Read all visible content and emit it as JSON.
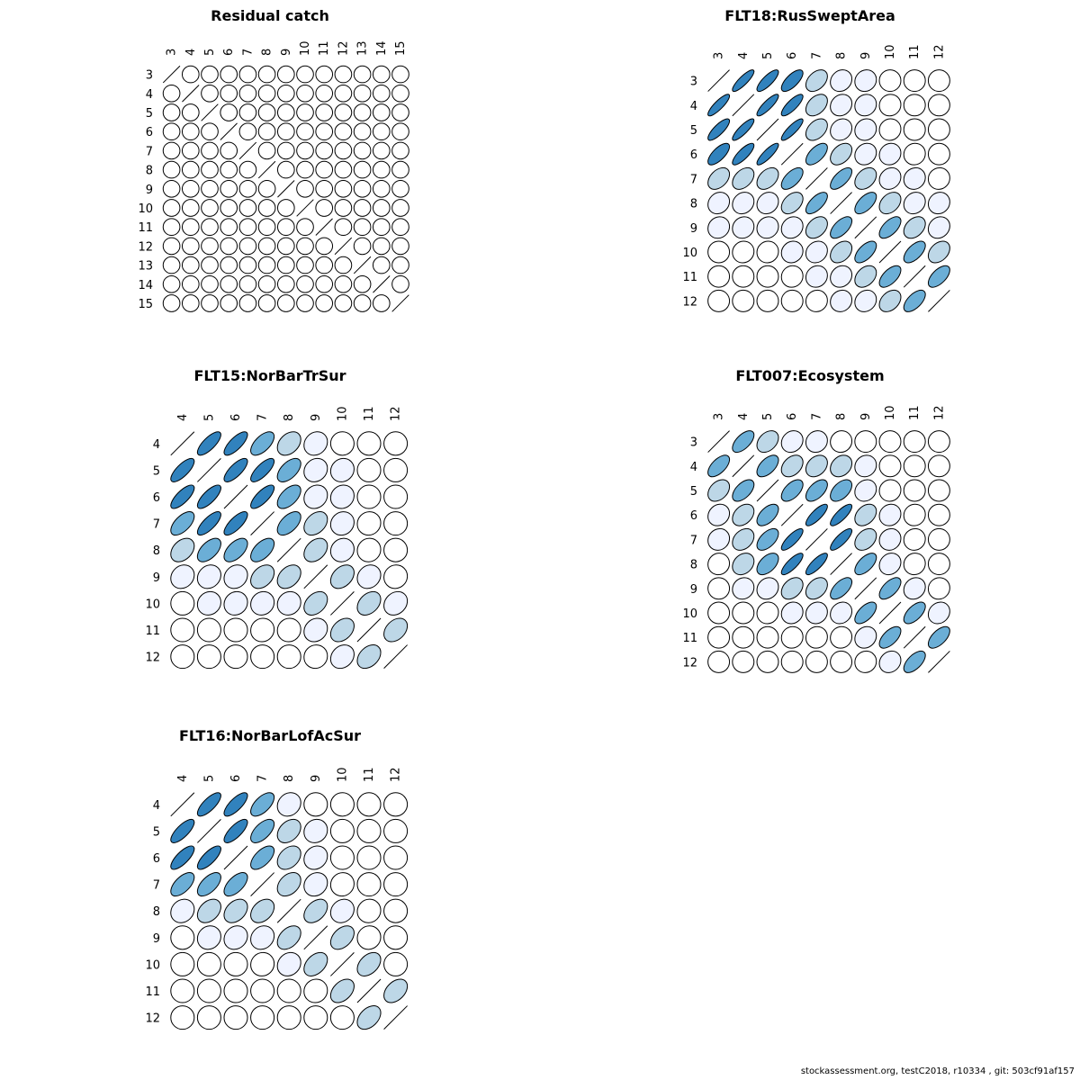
{
  "footer": "stockassessment.org, testC2018, r10334 , git: 503cf91af157",
  "colors": {
    "none": "#ffffff",
    "low": "#eff3ff",
    "mid": "#bdd7e7",
    "high": "#6baed6",
    "max": "#3182bd",
    "outline": "#000000"
  },
  "chart_data": [
    {
      "type": "heatmap",
      "title": "Residual catch",
      "labels": [
        "3",
        "4",
        "5",
        "6",
        "7",
        "8",
        "9",
        "10",
        "11",
        "12",
        "13",
        "14",
        "15"
      ],
      "matrix": [
        [
          1,
          0,
          0,
          0,
          0,
          0,
          0,
          0,
          0,
          0,
          0,
          0,
          0
        ],
        [
          0,
          1,
          0,
          0,
          0,
          0,
          0,
          0,
          0,
          0,
          0,
          0,
          0
        ],
        [
          0,
          0,
          1,
          0,
          0,
          0,
          0,
          0,
          0,
          0,
          0,
          0,
          0
        ],
        [
          0,
          0,
          0,
          1,
          0,
          0,
          0,
          0,
          0,
          0,
          0,
          0,
          0
        ],
        [
          0,
          0,
          0,
          0,
          1,
          0,
          0,
          0,
          0,
          0,
          0,
          0,
          0
        ],
        [
          0,
          0,
          0,
          0,
          0,
          1,
          0,
          0,
          0,
          0,
          0,
          0,
          0
        ],
        [
          0,
          0,
          0,
          0,
          0,
          0,
          1,
          0,
          0,
          0,
          0,
          0,
          0
        ],
        [
          0,
          0,
          0,
          0,
          0,
          0,
          0,
          1,
          0,
          0,
          0,
          0,
          0
        ],
        [
          0,
          0,
          0,
          0,
          0,
          0,
          0,
          0,
          1,
          0,
          0,
          0,
          0
        ],
        [
          0,
          0,
          0,
          0,
          0,
          0,
          0,
          0,
          0,
          1,
          0,
          0,
          0
        ],
        [
          0,
          0,
          0,
          0,
          0,
          0,
          0,
          0,
          0,
          0,
          1,
          0,
          0
        ],
        [
          0,
          0,
          0,
          0,
          0,
          0,
          0,
          0,
          0,
          0,
          0,
          1,
          0
        ],
        [
          0,
          0,
          0,
          0,
          0,
          0,
          0,
          0,
          0,
          0,
          0,
          0,
          1
        ]
      ]
    },
    {
      "type": "heatmap",
      "title": "FLT18:RusSweptArea",
      "labels": [
        "3",
        "4",
        "5",
        "6",
        "7",
        "8",
        "9",
        "10",
        "11",
        "12"
      ],
      "matrix": [
        [
          1,
          0.85,
          0.8,
          0.7,
          0.4,
          0.15,
          0.1,
          0,
          0,
          0
        ],
        [
          0.85,
          1,
          0.85,
          0.8,
          0.4,
          0.15,
          0.1,
          0.05,
          0,
          0
        ],
        [
          0.8,
          0.85,
          1,
          0.85,
          0.4,
          0.15,
          0.1,
          0.05,
          0,
          0
        ],
        [
          0.7,
          0.8,
          0.85,
          1,
          0.6,
          0.4,
          0.15,
          0.1,
          0.05,
          0
        ],
        [
          0.4,
          0.4,
          0.4,
          0.6,
          1,
          0.65,
          0.35,
          0.15,
          0.1,
          0.05
        ],
        [
          0.15,
          0.15,
          0.15,
          0.4,
          0.65,
          1,
          0.6,
          0.35,
          0.15,
          0.1
        ],
        [
          0.1,
          0.1,
          0.1,
          0.15,
          0.35,
          0.6,
          1,
          0.6,
          0.35,
          0.15
        ],
        [
          0,
          0.05,
          0.05,
          0.1,
          0.15,
          0.35,
          0.6,
          1,
          0.6,
          0.35
        ],
        [
          0,
          0,
          0,
          0.05,
          0.1,
          0.15,
          0.35,
          0.6,
          1,
          0.6
        ],
        [
          0,
          0,
          0,
          0,
          0.05,
          0.1,
          0.15,
          0.35,
          0.6,
          1
        ]
      ]
    },
    {
      "type": "heatmap",
      "title": "FLT15:NorBarTrSur",
      "labels": [
        "4",
        "5",
        "6",
        "7",
        "8",
        "9",
        "10",
        "11",
        "12"
      ],
      "matrix": [
        [
          1,
          0.75,
          0.75,
          0.6,
          0.35,
          0.15,
          0,
          0,
          0
        ],
        [
          0.75,
          1,
          0.75,
          0.75,
          0.55,
          0.15,
          0.1,
          0,
          0
        ],
        [
          0.75,
          0.75,
          1,
          0.75,
          0.55,
          0.15,
          0.1,
          0,
          0
        ],
        [
          0.6,
          0.75,
          0.75,
          1,
          0.55,
          0.35,
          0.1,
          0.05,
          0
        ],
        [
          0.35,
          0.55,
          0.55,
          0.55,
          1,
          0.35,
          0.1,
          0.05,
          0
        ],
        [
          0.15,
          0.15,
          0.15,
          0.35,
          0.35,
          1,
          0.35,
          0.15,
          0.05
        ],
        [
          0,
          0.1,
          0.1,
          0.1,
          0.1,
          0.35,
          1,
          0.35,
          0.2
        ],
        [
          0,
          0,
          0,
          0.05,
          0.05,
          0.15,
          0.35,
          1,
          0.35
        ],
        [
          0,
          0,
          0,
          0,
          0,
          0.05,
          0.2,
          0.35,
          1
        ]
      ]
    },
    {
      "type": "heatmap",
      "title": "FLT007:Ecosystem",
      "labels": [
        "3",
        "4",
        "5",
        "6",
        "7",
        "8",
        "9",
        "10",
        "11",
        "12"
      ],
      "matrix": [
        [
          1,
          0.6,
          0.35,
          0.15,
          0.1,
          0.05,
          0,
          0,
          0,
          0
        ],
        [
          0.6,
          1,
          0.55,
          0.35,
          0.3,
          0.25,
          0.1,
          0,
          0,
          0
        ],
        [
          0.35,
          0.55,
          1,
          0.55,
          0.55,
          0.5,
          0.15,
          0.05,
          0,
          0
        ],
        [
          0.15,
          0.35,
          0.55,
          1,
          0.8,
          0.8,
          0.35,
          0.1,
          0.05,
          0
        ],
        [
          0.1,
          0.3,
          0.55,
          0.8,
          1,
          0.8,
          0.35,
          0.1,
          0.05,
          0
        ],
        [
          0.05,
          0.25,
          0.5,
          0.8,
          0.8,
          1,
          0.6,
          0.15,
          0.05,
          0
        ],
        [
          0,
          0.1,
          0.15,
          0.35,
          0.35,
          0.6,
          1,
          0.6,
          0.15,
          0.05
        ],
        [
          0,
          0,
          0.05,
          0.1,
          0.1,
          0.15,
          0.6,
          1,
          0.6,
          0.15
        ],
        [
          0,
          0,
          0,
          0.05,
          0.05,
          0.05,
          0.15,
          0.6,
          1,
          0.6
        ],
        [
          0,
          0,
          0,
          0,
          0,
          0,
          0.05,
          0.15,
          0.6,
          1
        ]
      ]
    },
    {
      "type": "heatmap",
      "title": "FLT16:NorBarLofAcSur",
      "labels": [
        "4",
        "5",
        "6",
        "7",
        "8",
        "9",
        "10",
        "11",
        "12"
      ],
      "matrix": [
        [
          1,
          0.75,
          0.75,
          0.6,
          0.15,
          0,
          0,
          0,
          0
        ],
        [
          0.75,
          1,
          0.75,
          0.6,
          0.35,
          0.1,
          0,
          0,
          0
        ],
        [
          0.75,
          0.75,
          1,
          0.6,
          0.35,
          0.15,
          0,
          0,
          0
        ],
        [
          0.6,
          0.6,
          0.6,
          1,
          0.35,
          0.15,
          0.05,
          0,
          0
        ],
        [
          0.15,
          0.35,
          0.35,
          0.35,
          1,
          0.4,
          0.15,
          0.05,
          0
        ],
        [
          0,
          0.1,
          0.15,
          0.15,
          0.4,
          1,
          0.4,
          0.05,
          0
        ],
        [
          0,
          0,
          0,
          0.05,
          0.15,
          0.4,
          1,
          0.4,
          0
        ],
        [
          0,
          0,
          0,
          0,
          0,
          0.05,
          0.4,
          1,
          0.4
        ],
        [
          0,
          0,
          0,
          0,
          0,
          0,
          0,
          0.4,
          1
        ]
      ]
    }
  ]
}
